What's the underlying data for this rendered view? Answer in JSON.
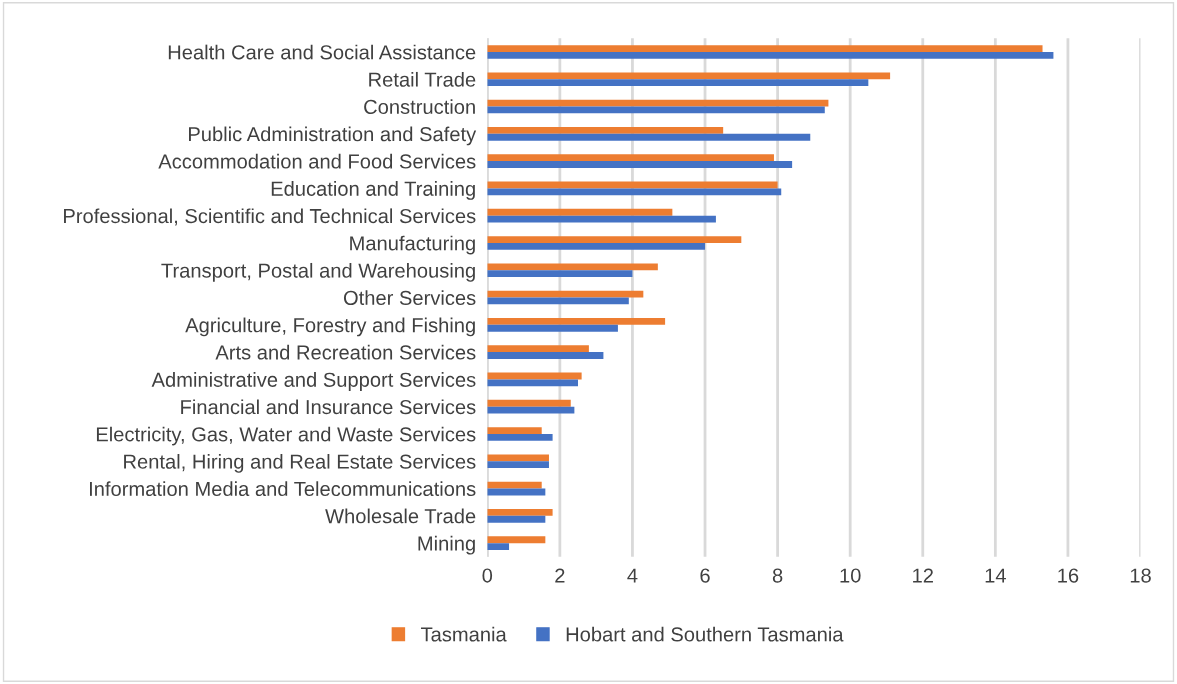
{
  "chart_data": {
    "type": "bar",
    "orientation": "horizontal",
    "categories": [
      "Health Care and Social Assistance",
      "Retail Trade",
      "Construction",
      "Public Administration and Safety",
      "Accommodation and Food Services",
      "Education and Training",
      "Professional, Scientific and Technical Services",
      "Manufacturing",
      "Transport, Postal and Warehousing",
      "Other Services",
      "Agriculture, Forestry and Fishing",
      "Arts and Recreation Services",
      "Administrative and Support Services",
      "Financial and Insurance Services",
      "Electricity, Gas, Water and Waste Services",
      "Rental, Hiring and Real Estate Services",
      "Information Media and Telecommunications",
      "Wholesale Trade",
      "Mining"
    ],
    "series": [
      {
        "name": "Tasmania",
        "color": "#ed7d31",
        "values": [
          15.3,
          11.1,
          9.4,
          6.5,
          7.9,
          8.0,
          5.1,
          7.0,
          4.7,
          4.3,
          4.9,
          2.8,
          2.6,
          2.3,
          1.5,
          1.7,
          1.5,
          1.8,
          1.6
        ]
      },
      {
        "name": "Hobart and Southern Tasmania",
        "color": "#4472c4",
        "values": [
          15.6,
          10.5,
          9.3,
          8.9,
          8.4,
          8.1,
          6.3,
          6.0,
          4.0,
          3.9,
          3.6,
          3.2,
          2.5,
          2.4,
          1.8,
          1.7,
          1.6,
          1.6,
          0.6
        ]
      }
    ],
    "xlim": [
      0,
      18
    ],
    "xticks": [
      0,
      2,
      4,
      6,
      8,
      10,
      12,
      14,
      16,
      18
    ],
    "grid": "x",
    "legend": "bottom"
  }
}
